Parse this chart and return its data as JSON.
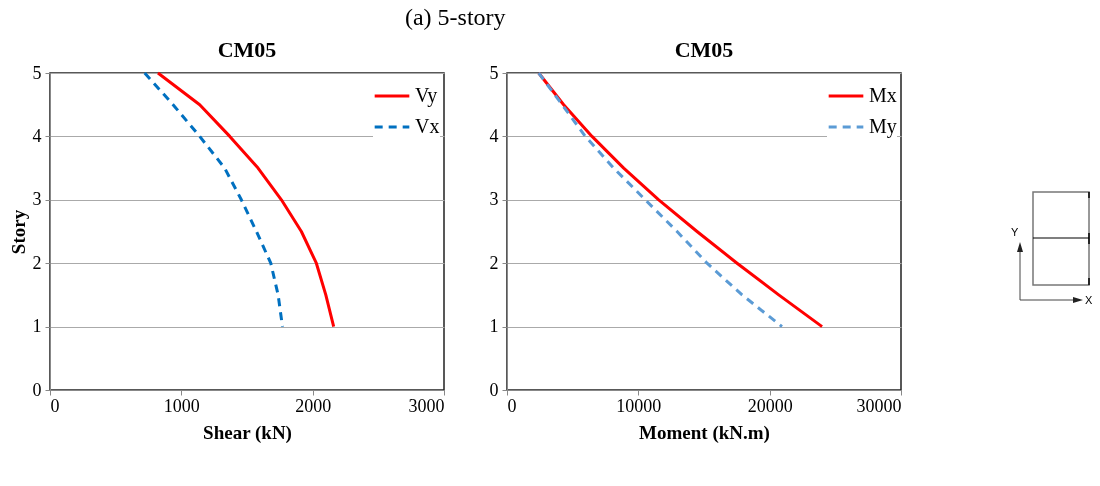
{
  "chart_data": [
    {
      "type": "line",
      "title": "CM05",
      "xlabel": "Shear (kN)",
      "ylabel": "Story",
      "annotations": [
        "(a) 5-story"
      ],
      "xlim": [
        0,
        3000
      ],
      "xticks": [
        0,
        1000,
        2000,
        3000
      ],
      "ylim": [
        0,
        5
      ],
      "yticks": [
        0,
        1,
        2,
        3,
        4,
        5
      ],
      "grid": "y",
      "legend": "top right",
      "series": [
        {
          "name": "Vy",
          "color": "#ff0000",
          "line_style": "solid",
          "x": [
            822,
            1140,
            1369,
            1584,
            1762,
            1914,
            2028,
            2100,
            2160
          ],
          "values": [
            5,
            4.5,
            4,
            3.5,
            3,
            2.5,
            2,
            1.5,
            1
          ]
        },
        {
          "name": "Vx",
          "color": "#0070c0",
          "line_style": "dashed",
          "x": [
            721,
            937,
            1140,
            1330,
            1457,
            1572,
            1681,
            1737,
            1770
          ],
          "values": [
            5,
            4.5,
            4,
            3.5,
            3,
            2.5,
            2,
            1.5,
            1
          ]
        }
      ]
    },
    {
      "type": "line",
      "title": "CM05",
      "xlabel": "Moment (kN.m)",
      "xlim": [
        0,
        30000
      ],
      "xticks": [
        0,
        10000,
        20000,
        30000
      ],
      "ylim": [
        0,
        5
      ],
      "yticks": [
        0,
        1,
        2,
        3,
        4,
        5
      ],
      "grid": "y",
      "legend": "top right",
      "series": [
        {
          "name": "Mx",
          "color": "#ff0000",
          "line_style": "solid",
          "x": [
            2413,
            4315,
            6474,
            8887,
            11553,
            14470,
            17517,
            20690,
            23990
          ],
          "values": [
            5,
            4.5,
            4,
            3.5,
            3,
            2.5,
            2,
            1.5,
            1
          ]
        },
        {
          "name": "My",
          "color": "#5b9bd5",
          "line_style": "dashed",
          "x": [
            2413,
            4200,
            5965,
            8125,
            10530,
            12950,
            15230,
            17900,
            20940
          ],
          "values": [
            5,
            4.5,
            4,
            3.5,
            3,
            2.5,
            2,
            1.5,
            1
          ]
        }
      ]
    },
    {
      "type": "other",
      "annotations": [
        "Y",
        "X"
      ]
    }
  ]
}
